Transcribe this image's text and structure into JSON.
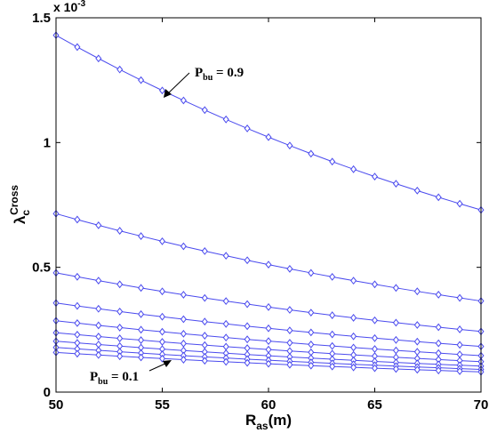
{
  "chart_data": {
    "type": "line",
    "title": "",
    "xlabel": {
      "main": "R",
      "sub": "as",
      "tail": "(m)"
    },
    "ylabel": {
      "main": "λ",
      "sub": "c",
      "sup": "Cross"
    },
    "y_exponent_label": {
      "prefix": "x 10",
      "exp": "-3"
    },
    "xlim": [
      50,
      70
    ],
    "ylim": [
      0,
      1.5
    ],
    "x_ticks": [
      "50",
      "55",
      "60",
      "65",
      "70"
    ],
    "y_ticks": [
      "0",
      "0.5",
      "1",
      "1.5"
    ],
    "grid": false,
    "legend": "none",
    "line_color": "#4a4aee",
    "marker": "diamond",
    "x": [
      50,
      51,
      52,
      53,
      54,
      55,
      56,
      57,
      58,
      59,
      60,
      61,
      62,
      63,
      64,
      65,
      66,
      67,
      68,
      69,
      70
    ],
    "series": [
      {
        "y_start": 1.43,
        "y_end": 0.73
      },
      {
        "y_start": 0.715,
        "y_end": 0.365
      },
      {
        "y_start": 0.478,
        "y_end": 0.243
      },
      {
        "y_start": 0.357,
        "y_end": 0.183
      },
      {
        "y_start": 0.286,
        "y_end": 0.146
      },
      {
        "y_start": 0.238,
        "y_end": 0.122
      },
      {
        "y_start": 0.204,
        "y_end": 0.104
      },
      {
        "y_start": 0.179,
        "y_end": 0.091
      },
      {
        "y_start": 0.159,
        "y_end": 0.081
      }
    ],
    "annotations": [
      {
        "main": "P",
        "sub": "bu",
        "tail": " = 0.9",
        "target_x": 55,
        "target_series": 0
      },
      {
        "main": "P",
        "sub": "bu",
        "tail": " = 0.1",
        "target_x": 56,
        "target_series": 8
      }
    ]
  }
}
